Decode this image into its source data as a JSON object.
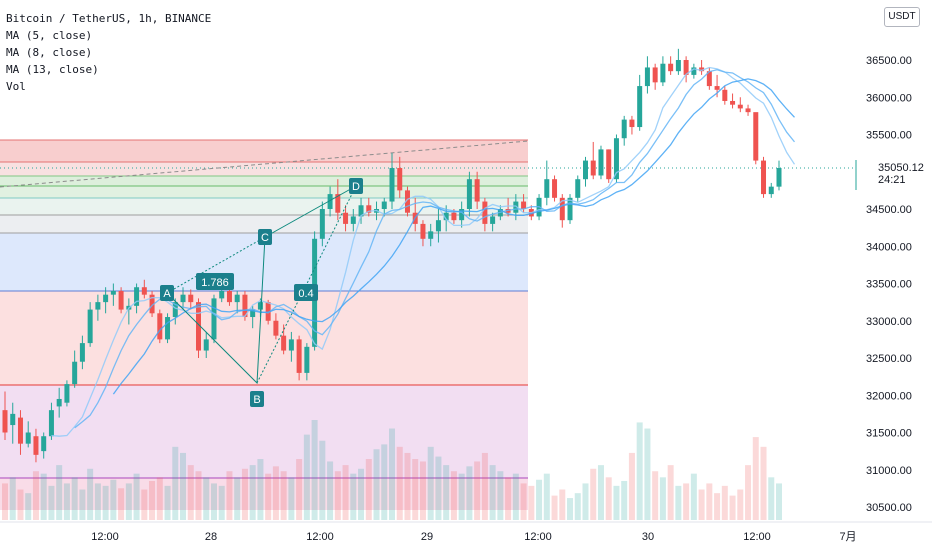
{
  "legend": {
    "symbol": "Bitcoin / TetherUS, 1h, BINANCE",
    "ma5": "MA (5, close)",
    "ma8": "MA (8, close)",
    "ma13": "MA (13, close)",
    "vol": "Vol"
  },
  "currency": "USDT",
  "last_price": "35050.12",
  "countdown": "24:21",
  "chart_data": {
    "type": "candlestick",
    "price_axis": [
      "36500.00",
      "36000.00",
      "35500.00",
      "35000.00",
      "34500.00",
      "34000.00",
      "33500.00",
      "33000.00",
      "32500.00",
      "32000.00",
      "31500.00",
      "31000.00",
      "30500.00"
    ],
    "time_axis": [
      "12:00",
      "28",
      "12:00",
      "29",
      "12:00",
      "30",
      "12:00",
      "7月"
    ],
    "ylim": [
      30350,
      37100
    ],
    "pattern_labels": {
      "A": "A",
      "B": "B",
      "C": "C",
      "D": "D"
    },
    "ratios": {
      "ab": "1.786",
      "bc": "0.4"
    },
    "candles": [
      [
        31800,
        32050,
        31400,
        31500
      ],
      [
        31600,
        31900,
        31350,
        31750
      ],
      [
        31700,
        31800,
        31200,
        31350
      ],
      [
        31350,
        31650,
        31300,
        31500
      ],
      [
        31450,
        31550,
        31100,
        31200
      ],
      [
        31250,
        31500,
        31150,
        31450
      ],
      [
        31450,
        31900,
        31400,
        31800
      ],
      [
        31850,
        32100,
        31700,
        31950
      ],
      [
        31900,
        32200,
        31850,
        32150
      ],
      [
        32150,
        32600,
        32100,
        32450
      ],
      [
        32450,
        32800,
        32350,
        32700
      ],
      [
        32700,
        33250,
        32650,
        33150
      ],
      [
        33150,
        33350,
        33000,
        33250
      ],
      [
        33250,
        33450,
        33100,
        33350
      ],
      [
        33350,
        33500,
        33200,
        33400
      ],
      [
        33400,
        33450,
        33100,
        33150
      ],
      [
        33150,
        33300,
        32950,
        33200
      ],
      [
        33200,
        33500,
        33100,
        33450
      ],
      [
        33450,
        33550,
        33300,
        33350
      ],
      [
        33350,
        33400,
        33050,
        33100
      ],
      [
        33100,
        33150,
        32700,
        32750
      ],
      [
        32750,
        33100,
        32700,
        33050
      ],
      [
        33050,
        33300,
        32950,
        33250
      ],
      [
        33250,
        33450,
        33150,
        33350
      ],
      [
        33350,
        33420,
        33150,
        33250
      ],
      [
        33250,
        33300,
        32500,
        32600
      ],
      [
        32600,
        32850,
        32500,
        32750
      ],
      [
        32750,
        33350,
        32700,
        33300
      ],
      [
        33300,
        33450,
        33250,
        33400
      ],
      [
        33400,
        33500,
        33200,
        33250
      ],
      [
        33250,
        33400,
        33100,
        33350
      ],
      [
        33350,
        33400,
        33000,
        33050
      ],
      [
        33050,
        33200,
        32900,
        33150
      ],
      [
        33150,
        33300,
        33050,
        33250
      ],
      [
        33250,
        33280,
        32950,
        33000
      ],
      [
        33000,
        33100,
        32750,
        32800
      ],
      [
        32800,
        32950,
        32550,
        32600
      ],
      [
        32600,
        32850,
        32450,
        32750
      ],
      [
        32750,
        32800,
        32200,
        32300
      ],
      [
        32300,
        32700,
        32200,
        32650
      ],
      [
        32650,
        34200,
        32600,
        34100
      ],
      [
        34100,
        34600,
        34000,
        34500
      ],
      [
        34500,
        34800,
        34400,
        34700
      ],
      [
        34700,
        34900,
        34350,
        34450
      ],
      [
        34450,
        34550,
        34200,
        34300
      ],
      [
        34300,
        34500,
        34200,
        34400
      ],
      [
        34400,
        34650,
        34300,
        34550
      ],
      [
        34550,
        34650,
        34400,
        34450
      ],
      [
        34450,
        34600,
        34350,
        34500
      ],
      [
        34500,
        34650,
        34400,
        34600
      ],
      [
        34600,
        35250,
        34500,
        35050
      ],
      [
        35050,
        35200,
        34650,
        34750
      ],
      [
        34750,
        34800,
        34400,
        34450
      ],
      [
        34450,
        34650,
        34200,
        34300
      ],
      [
        34300,
        34350,
        34000,
        34100
      ],
      [
        34100,
        34300,
        34000,
        34200
      ],
      [
        34200,
        34500,
        34050,
        34350
      ],
      [
        34350,
        34550,
        34200,
        34450
      ],
      [
        34450,
        34500,
        34300,
        34350
      ],
      [
        34350,
        34600,
        34250,
        34500
      ],
      [
        34500,
        35000,
        34400,
        34900
      ],
      [
        34900,
        35000,
        34500,
        34600
      ],
      [
        34600,
        34650,
        34200,
        34300
      ],
      [
        34300,
        34450,
        34200,
        34400
      ],
      [
        34400,
        34550,
        34350,
        34500
      ],
      [
        34500,
        34650,
        34400,
        34450
      ],
      [
        34450,
        34700,
        34350,
        34600
      ],
      [
        34600,
        34700,
        34450,
        34500
      ],
      [
        34500,
        34550,
        34350,
        34400
      ],
      [
        34400,
        34700,
        34350,
        34650
      ],
      [
        34650,
        35150,
        34550,
        34900
      ],
      [
        34900,
        34950,
        34600,
        34650
      ],
      [
        34650,
        34700,
        34250,
        34350
      ],
      [
        34350,
        34700,
        34300,
        34650
      ],
      [
        34650,
        34950,
        34600,
        34900
      ],
      [
        34900,
        35200,
        34800,
        35150
      ],
      [
        35150,
        35400,
        34900,
        34950
      ],
      [
        34950,
        35350,
        34900,
        35300
      ],
      [
        35300,
        35300,
        34850,
        34900
      ],
      [
        34900,
        35500,
        34850,
        35450
      ],
      [
        35450,
        35750,
        35350,
        35700
      ],
      [
        35700,
        35750,
        35500,
        35600
      ],
      [
        35600,
        36300,
        35550,
        36150
      ],
      [
        36150,
        36550,
        36050,
        36400
      ],
      [
        36400,
        36450,
        36100,
        36200
      ],
      [
        36200,
        36550,
        36150,
        36450
      ],
      [
        36450,
        36550,
        36300,
        36350
      ],
      [
        36350,
        36650,
        36300,
        36500
      ],
      [
        36500,
        36550,
        36200,
        36300
      ],
      [
        36300,
        36450,
        36250,
        36400
      ],
      [
        36400,
        36500,
        36300,
        36350
      ],
      [
        36350,
        36400,
        36100,
        36150
      ],
      [
        36150,
        36300,
        36000,
        36100
      ],
      [
        36100,
        36150,
        35900,
        35950
      ],
      [
        35950,
        36050,
        35850,
        35900
      ],
      [
        35900,
        36000,
        35800,
        35850
      ],
      [
        35850,
        35900,
        35750,
        35800
      ],
      [
        35800,
        35750,
        35100,
        35150
      ],
      [
        35150,
        35200,
        34650,
        34700
      ],
      [
        34700,
        34850,
        34650,
        34800
      ],
      [
        34800,
        35150,
        34750,
        35050
      ]
    ],
    "volumes": [
      30,
      35,
      25,
      22,
      40,
      38,
      28,
      45,
      30,
      35,
      25,
      42,
      30,
      28,
      33,
      26,
      30,
      38,
      25,
      32,
      35,
      28,
      60,
      55,
      45,
      40,
      35,
      30,
      28,
      40,
      35,
      42,
      45,
      50,
      38,
      44,
      40,
      35,
      50,
      70,
      82,
      65,
      48,
      40,
      45,
      38,
      42,
      50,
      58,
      62,
      75,
      60,
      55,
      50,
      48,
      60,
      52,
      45,
      40,
      38,
      44,
      48,
      55,
      45,
      40,
      35,
      38,
      30,
      28,
      33,
      38,
      20,
      25,
      18,
      22,
      30,
      42,
      45,
      35,
      28,
      32,
      55,
      80,
      75,
      40,
      35,
      45,
      28,
      30,
      38,
      25,
      30,
      22,
      28,
      20,
      25,
      45,
      68,
      60,
      35,
      30
    ]
  }
}
